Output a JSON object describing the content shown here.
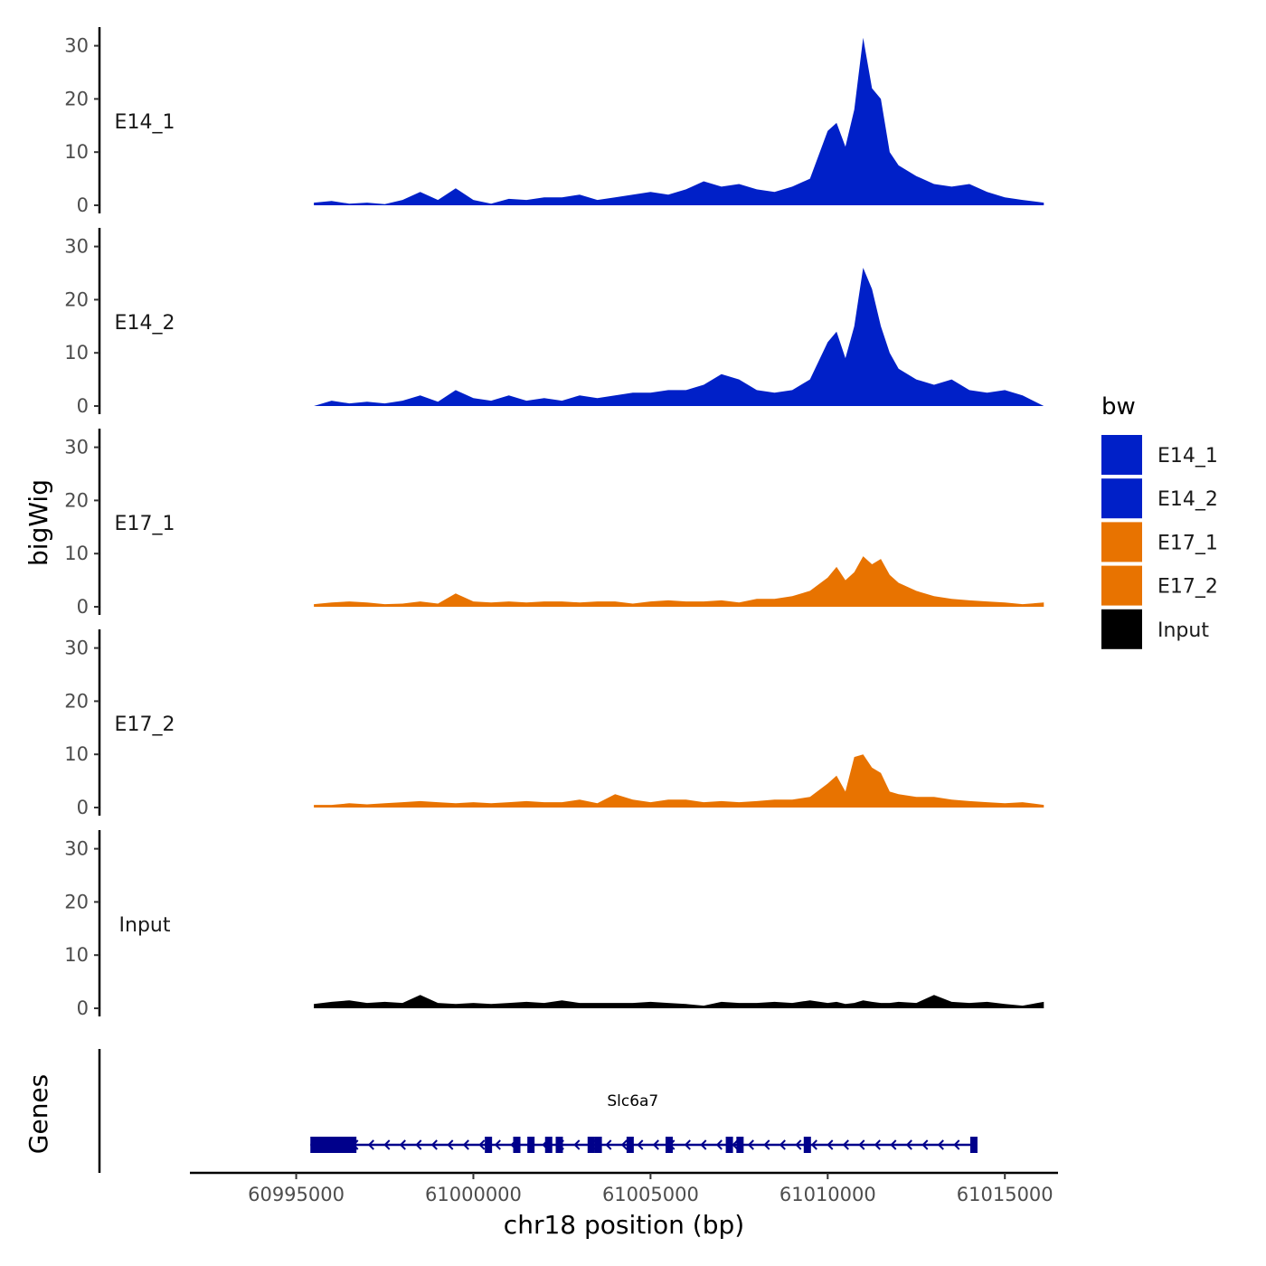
{
  "chart_data": {
    "type": "area",
    "title": "",
    "xlabel": "chr18 position (bp)",
    "ylabel": "bigWig",
    "genes_label": "Genes",
    "xlim": [
      60992000,
      61016500
    ],
    "ylim": [
      0,
      33
    ],
    "x_ticks": [
      60995000,
      61000000,
      61005000,
      61010000,
      61015000
    ],
    "x_tick_labels": [
      "60995000",
      "61000000",
      "61005000",
      "61010000",
      "61015000"
    ],
    "y_ticks": [
      0,
      10,
      20,
      30
    ],
    "y_tick_labels": [
      "0",
      "10",
      "20",
      "30"
    ],
    "legend": {
      "title": "bw",
      "placement": "right",
      "entries": [
        {
          "label": "E14_1",
          "color": "#0020C8"
        },
        {
          "label": "E14_2",
          "color": "#0020C8"
        },
        {
          "label": "E17_1",
          "color": "#E87300"
        },
        {
          "label": "E17_2",
          "color": "#E87300"
        },
        {
          "label": "Input",
          "color": "#000000"
        }
      ]
    },
    "x": [
      60995500,
      60996000,
      60996500,
      60997000,
      60997500,
      60998000,
      60998500,
      60999000,
      60999500,
      61000000,
      61000500,
      61001000,
      61001500,
      61002000,
      61002500,
      61003000,
      61003500,
      61004000,
      61004500,
      61005000,
      61005500,
      61006000,
      61006500,
      61007000,
      61007500,
      61008000,
      61008500,
      61009000,
      61009500,
      61010000,
      61010250,
      61010500,
      61010750,
      61011000,
      61011250,
      61011500,
      61011750,
      61012000,
      61012500,
      61013000,
      61013500,
      61014000,
      61014500,
      61015000,
      61015500,
      61016100
    ],
    "series": [
      {
        "name": "E14_1",
        "color": "#0020C8",
        "values": [
          0.5,
          0.8,
          0.3,
          0.5,
          0.2,
          1.0,
          2.5,
          1.0,
          3.2,
          1.0,
          0.3,
          1.2,
          1.0,
          1.5,
          1.5,
          2.0,
          1.0,
          1.5,
          2.0,
          2.5,
          2.0,
          3.0,
          4.5,
          3.5,
          4.0,
          3.0,
          2.5,
          3.5,
          5.0,
          14.0,
          15.5,
          11.0,
          18.0,
          31.5,
          22.0,
          20.0,
          10.0,
          7.5,
          5.5,
          4.0,
          3.5,
          4.0,
          2.5,
          1.5,
          1.0,
          0.5
        ]
      },
      {
        "name": "E14_2",
        "color": "#0020C8",
        "values": [
          0.0,
          1.0,
          0.5,
          0.8,
          0.5,
          1.0,
          2.0,
          0.8,
          3.0,
          1.5,
          1.0,
          2.0,
          1.0,
          1.5,
          1.0,
          2.0,
          1.5,
          2.0,
          2.5,
          2.5,
          3.0,
          3.0,
          4.0,
          6.0,
          5.0,
          3.0,
          2.5,
          3.0,
          5.0,
          12.0,
          14.0,
          9.0,
          15.0,
          26.0,
          22.0,
          15.0,
          10.0,
          7.0,
          5.0,
          4.0,
          5.0,
          3.0,
          2.5,
          3.0,
          2.0,
          0.0
        ]
      },
      {
        "name": "E17_1",
        "color": "#E87300",
        "values": [
          0.5,
          0.8,
          1.0,
          0.8,
          0.5,
          0.6,
          1.0,
          0.6,
          2.5,
          1.0,
          0.8,
          1.0,
          0.8,
          1.0,
          1.0,
          0.8,
          1.0,
          1.0,
          0.6,
          1.0,
          1.2,
          1.0,
          1.0,
          1.2,
          0.8,
          1.5,
          1.5,
          2.0,
          3.0,
          5.5,
          7.5,
          5.0,
          6.5,
          9.5,
          8.0,
          9.0,
          6.0,
          4.5,
          3.0,
          2.0,
          1.5,
          1.2,
          1.0,
          0.8,
          0.5,
          0.8
        ]
      },
      {
        "name": "E17_2",
        "color": "#E87300",
        "values": [
          0.5,
          0.5,
          0.8,
          0.6,
          0.8,
          1.0,
          1.2,
          1.0,
          0.8,
          1.0,
          0.8,
          1.0,
          1.2,
          1.0,
          1.0,
          1.5,
          0.8,
          2.5,
          1.5,
          1.0,
          1.5,
          1.5,
          1.0,
          1.2,
          1.0,
          1.2,
          1.5,
          1.5,
          2.0,
          4.5,
          6.0,
          3.0,
          9.5,
          10.0,
          7.5,
          6.5,
          3.0,
          2.5,
          2.0,
          2.0,
          1.5,
          1.2,
          1.0,
          0.8,
          1.0,
          0.5
        ]
      },
      {
        "name": "Input",
        "color": "#000000",
        "values": [
          0.8,
          1.2,
          1.5,
          1.0,
          1.2,
          1.0,
          2.5,
          1.0,
          0.8,
          1.0,
          0.8,
          1.0,
          1.2,
          1.0,
          1.5,
          1.0,
          1.0,
          1.0,
          1.0,
          1.2,
          1.0,
          0.8,
          0.5,
          1.2,
          1.0,
          1.0,
          1.2,
          1.0,
          1.5,
          1.0,
          1.2,
          0.8,
          1.0,
          1.5,
          1.2,
          1.0,
          1.0,
          1.2,
          1.0,
          2.5,
          1.2,
          1.0,
          1.2,
          0.8,
          0.5,
          1.2
        ]
      }
    ],
    "gene": {
      "name": "Slc6a7",
      "strand": "-",
      "start": 60995400,
      "end": 61014200,
      "thick_block": [
        60995400,
        60996700
      ],
      "exons": [
        61000400,
        61001200,
        61001600,
        61002100,
        61002400,
        61003300,
        61003500,
        61004400,
        61005500,
        61007200,
        61007500,
        61009400,
        61014100
      ]
    }
  }
}
